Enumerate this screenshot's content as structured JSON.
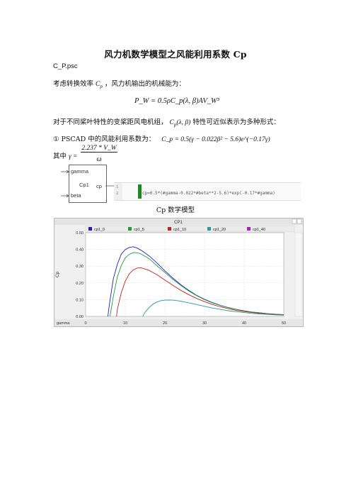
{
  "doc": {
    "title": "风力机数学模型之风能利用系数 Cp",
    "lines": [
      "C_P.psc",
      "考虑转换效率",
      "，风力机输出的机械能为：",
      "对于不同桨叶特性的变桨距风电机组，",
      "特性可近似表示为多种形式：",
      "① PSCAD 中的风能利用系数为：",
      "其中"
    ],
    "formulas": {
      "cp_symbol": "C",
      "cp_sub": "p",
      "power_eq": "P_W = 0.5ρC_p(λ, β)AV_W³",
      "cp_args": "(λ, β)",
      "pscad_eq": "C_p = 0.5(γ − 0.022β² − 5.6)e^(−0.17γ)",
      "gamma_num": "2.237 * V_W",
      "gamma_den": "ω",
      "gamma_lhs": "γ ="
    },
    "caption": "Cp 数学模型"
  },
  "component": {
    "in1": "gamma",
    "in2": "beta",
    "name": "Cp1",
    "out": "cp"
  },
  "code": {
    "line_numbers": [
      "1",
      "2"
    ],
    "text": "cp=0.5*(#gamma-0.022*#beta**2-5.6)*exp(-0.17*#gamma)"
  },
  "chart_data": {
    "type": "line",
    "title": "CP1",
    "ylabel": "Cp",
    "xlabel": "gamma",
    "xlim": [
      0,
      50
    ],
    "ylim": [
      0,
      0.5
    ],
    "xticks": [
      0,
      10,
      20,
      30,
      40,
      50
    ],
    "yticks": [
      0.0,
      0.1,
      0.2,
      0.3,
      0.4,
      0.5
    ],
    "ytick_labels": [
      "0.00",
      "0.10",
      "0.20",
      "0.30",
      "0.40",
      "0.50"
    ],
    "legend_position": "top",
    "grid": true,
    "series": [
      {
        "name": "cp1_0",
        "color": "#1f1fbf",
        "x": [
          5.6,
          6,
          7,
          8,
          9,
          10,
          11,
          12,
          13,
          14,
          16,
          18,
          20,
          22,
          24,
          26,
          28,
          30,
          32,
          34,
          36,
          38,
          40,
          42,
          44,
          46,
          48,
          50
        ],
        "y": [
          0.0,
          0.072,
          0.226,
          0.311,
          0.372,
          0.399,
          0.412,
          0.416,
          0.408,
          0.395,
          0.362,
          0.319,
          0.272,
          0.229,
          0.19,
          0.156,
          0.126,
          0.102,
          0.082,
          0.066,
          0.053,
          0.042,
          0.033,
          0.026,
          0.021,
          0.016,
          0.013,
          0.01
        ]
      },
      {
        "name": "cp1_5",
        "color": "#1f9a3a",
        "x": [
          6.15,
          7,
          8,
          9,
          10,
          11,
          12,
          13,
          14,
          16,
          18,
          20,
          22,
          24,
          26,
          28,
          30,
          32,
          34,
          36,
          38,
          40,
          42,
          44,
          46,
          48,
          50
        ],
        "y": [
          0.0,
          0.12,
          0.236,
          0.304,
          0.35,
          0.37,
          0.381,
          0.38,
          0.373,
          0.345,
          0.303,
          0.262,
          0.221,
          0.185,
          0.152,
          0.124,
          0.1,
          0.081,
          0.065,
          0.052,
          0.042,
          0.033,
          0.026,
          0.021,
          0.016,
          0.013,
          0.01
        ]
      },
      {
        "name": "cp1_10",
        "color": "#c42020",
        "x": [
          7.8,
          8,
          9,
          10,
          11,
          12,
          13,
          14,
          16,
          18,
          20,
          22,
          24,
          26,
          28,
          30,
          32,
          34,
          36,
          38,
          40,
          42,
          44,
          46,
          48,
          50
        ],
        "y": [
          0.0,
          0.041,
          0.142,
          0.21,
          0.254,
          0.277,
          0.289,
          0.29,
          0.275,
          0.249,
          0.217,
          0.186,
          0.156,
          0.13,
          0.107,
          0.088,
          0.071,
          0.057,
          0.046,
          0.036,
          0.029,
          0.023,
          0.018,
          0.014,
          0.011,
          0.009
        ]
      },
      {
        "name": "cp1_20",
        "color": "#2a9aa0",
        "x": [
          14.4,
          15,
          16,
          17,
          18,
          19,
          20,
          21,
          22,
          24,
          26,
          28,
          30,
          32,
          34,
          36,
          38,
          40,
          42,
          44,
          46,
          48,
          50
        ],
        "y": [
          0.0,
          0.024,
          0.053,
          0.073,
          0.086,
          0.094,
          0.097,
          0.098,
          0.097,
          0.091,
          0.081,
          0.071,
          0.06,
          0.05,
          0.042,
          0.034,
          0.028,
          0.023,
          0.018,
          0.015,
          0.012,
          0.009,
          0.007
        ]
      },
      {
        "name": "cp1_40",
        "color": "#a020c0",
        "x": [],
        "y": []
      }
    ]
  }
}
